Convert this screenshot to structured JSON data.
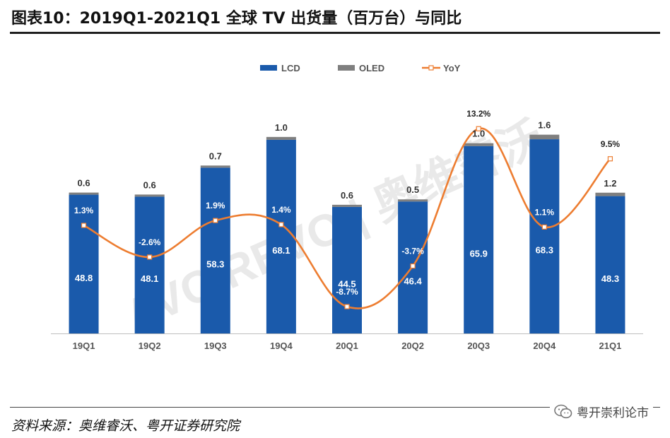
{
  "title": "图表10：2019Q1-2021Q1 全球 TV 出货量（百万台）与同比",
  "source": "资料来源：奥维睿沃、粤开证券研究院",
  "badge": "粤开崇利论市",
  "watermark": "AVC REVO | 奥维睿沃",
  "colors": {
    "lcd": "#1a5aab",
    "oled": "#7f7f7f",
    "yoy": "#ed7d31"
  },
  "chart_data": {
    "type": "bar",
    "categories": [
      "19Q1",
      "19Q2",
      "19Q3",
      "19Q4",
      "20Q1",
      "20Q2",
      "20Q3",
      "20Q4",
      "21Q1"
    ],
    "series": [
      {
        "name": "LCD",
        "kind": "stacked-bar",
        "values": [
          48.8,
          48.1,
          58.3,
          68.1,
          44.5,
          46.4,
          65.9,
          68.3,
          48.3
        ],
        "labels": [
          "48.8",
          "48.1",
          "58.3",
          "68.1",
          "44.5",
          "46.4",
          "65.9",
          "68.3",
          "48.3"
        ]
      },
      {
        "name": "OLED",
        "kind": "stacked-bar",
        "values": [
          0.6,
          0.6,
          0.7,
          1.0,
          0.6,
          0.5,
          1.0,
          1.6,
          1.2
        ],
        "labels": [
          "0.6",
          "0.6",
          "0.7",
          "1.0",
          "0.6",
          "0.5",
          "1.0",
          "1.6",
          "1.2"
        ]
      },
      {
        "name": "YoY",
        "kind": "smooth-line",
        "axis": "secondary",
        "values": [
          1.3,
          -2.6,
          1.9,
          1.4,
          -8.7,
          -3.7,
          13.2,
          1.1,
          9.5
        ],
        "labels": [
          "1.3%",
          "-2.6%",
          "1.9%",
          "1.4%",
          "-8.7%",
          "-3.7%",
          "13.2%",
          "1.1%",
          "9.5%"
        ]
      }
    ],
    "legend": [
      "LCD",
      "OLED",
      "YoY"
    ],
    "legend_position": "top",
    "ylim": [
      0,
      80
    ],
    "y2lim": [
      -12,
      16
    ],
    "grid": false
  }
}
